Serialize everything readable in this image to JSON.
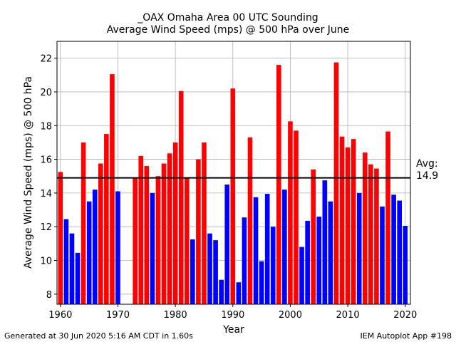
{
  "chart_data": {
    "type": "bar",
    "title_line1": "_OAX Omaha Area  00 UTC Sounding",
    "title_line2": "Average Wind Speed (mps) @ 500 hPa over June",
    "xlabel": "Year",
    "ylabel": "Average Wind Speed (mps) @ 500 hPa",
    "xlim": [
      1959.4,
      2020.9
    ],
    "ylim": [
      7.4,
      23.0
    ],
    "xticks": [
      1960,
      1970,
      1980,
      1990,
      2000,
      2010,
      2020
    ],
    "yticks": [
      8,
      10,
      12,
      14,
      16,
      18,
      20,
      22
    ],
    "grid": true,
    "average": 14.9,
    "average_label_line1": "Avg:",
    "average_label_line2": "14.9",
    "colors": {
      "above": "#ff0000",
      "below": "#0000ff",
      "avg_line": "#000000"
    },
    "years": [
      1960,
      1961,
      1962,
      1963,
      1964,
      1965,
      1966,
      1967,
      1968,
      1969,
      1970,
      1973,
      1974,
      1975,
      1976,
      1977,
      1978,
      1979,
      1980,
      1981,
      1982,
      1983,
      1984,
      1985,
      1986,
      1987,
      1988,
      1989,
      1990,
      1991,
      1992,
      1993,
      1994,
      1995,
      1996,
      1997,
      1998,
      1999,
      2000,
      2001,
      2002,
      2003,
      2004,
      2005,
      2006,
      2007,
      2008,
      2009,
      2010,
      2011,
      2012,
      2013,
      2014,
      2015,
      2016,
      2017,
      2018,
      2019,
      2020
    ],
    "values": [
      15.25,
      12.45,
      11.6,
      10.45,
      17.0,
      13.5,
      14.2,
      15.75,
      17.5,
      21.05,
      14.1,
      14.9,
      16.2,
      15.6,
      14.0,
      15.0,
      15.75,
      16.35,
      17.0,
      20.05,
      14.9,
      11.25,
      16.0,
      17.0,
      11.6,
      11.2,
      8.85,
      14.5,
      20.2,
      8.7,
      12.55,
      17.3,
      13.75,
      9.95,
      13.95,
      12.0,
      21.6,
      14.2,
      18.25,
      17.7,
      10.8,
      12.35,
      15.4,
      12.6,
      14.75,
      13.5,
      21.75,
      17.35,
      16.7,
      17.2,
      14.0,
      16.4,
      15.7,
      15.45,
      13.2,
      17.65,
      13.9,
      13.55,
      12.05
    ]
  },
  "footer": {
    "left": "Generated at 30 Jun 2020 5:16 AM CDT in 1.60s",
    "right": "IEM Autoplot App #198"
  }
}
